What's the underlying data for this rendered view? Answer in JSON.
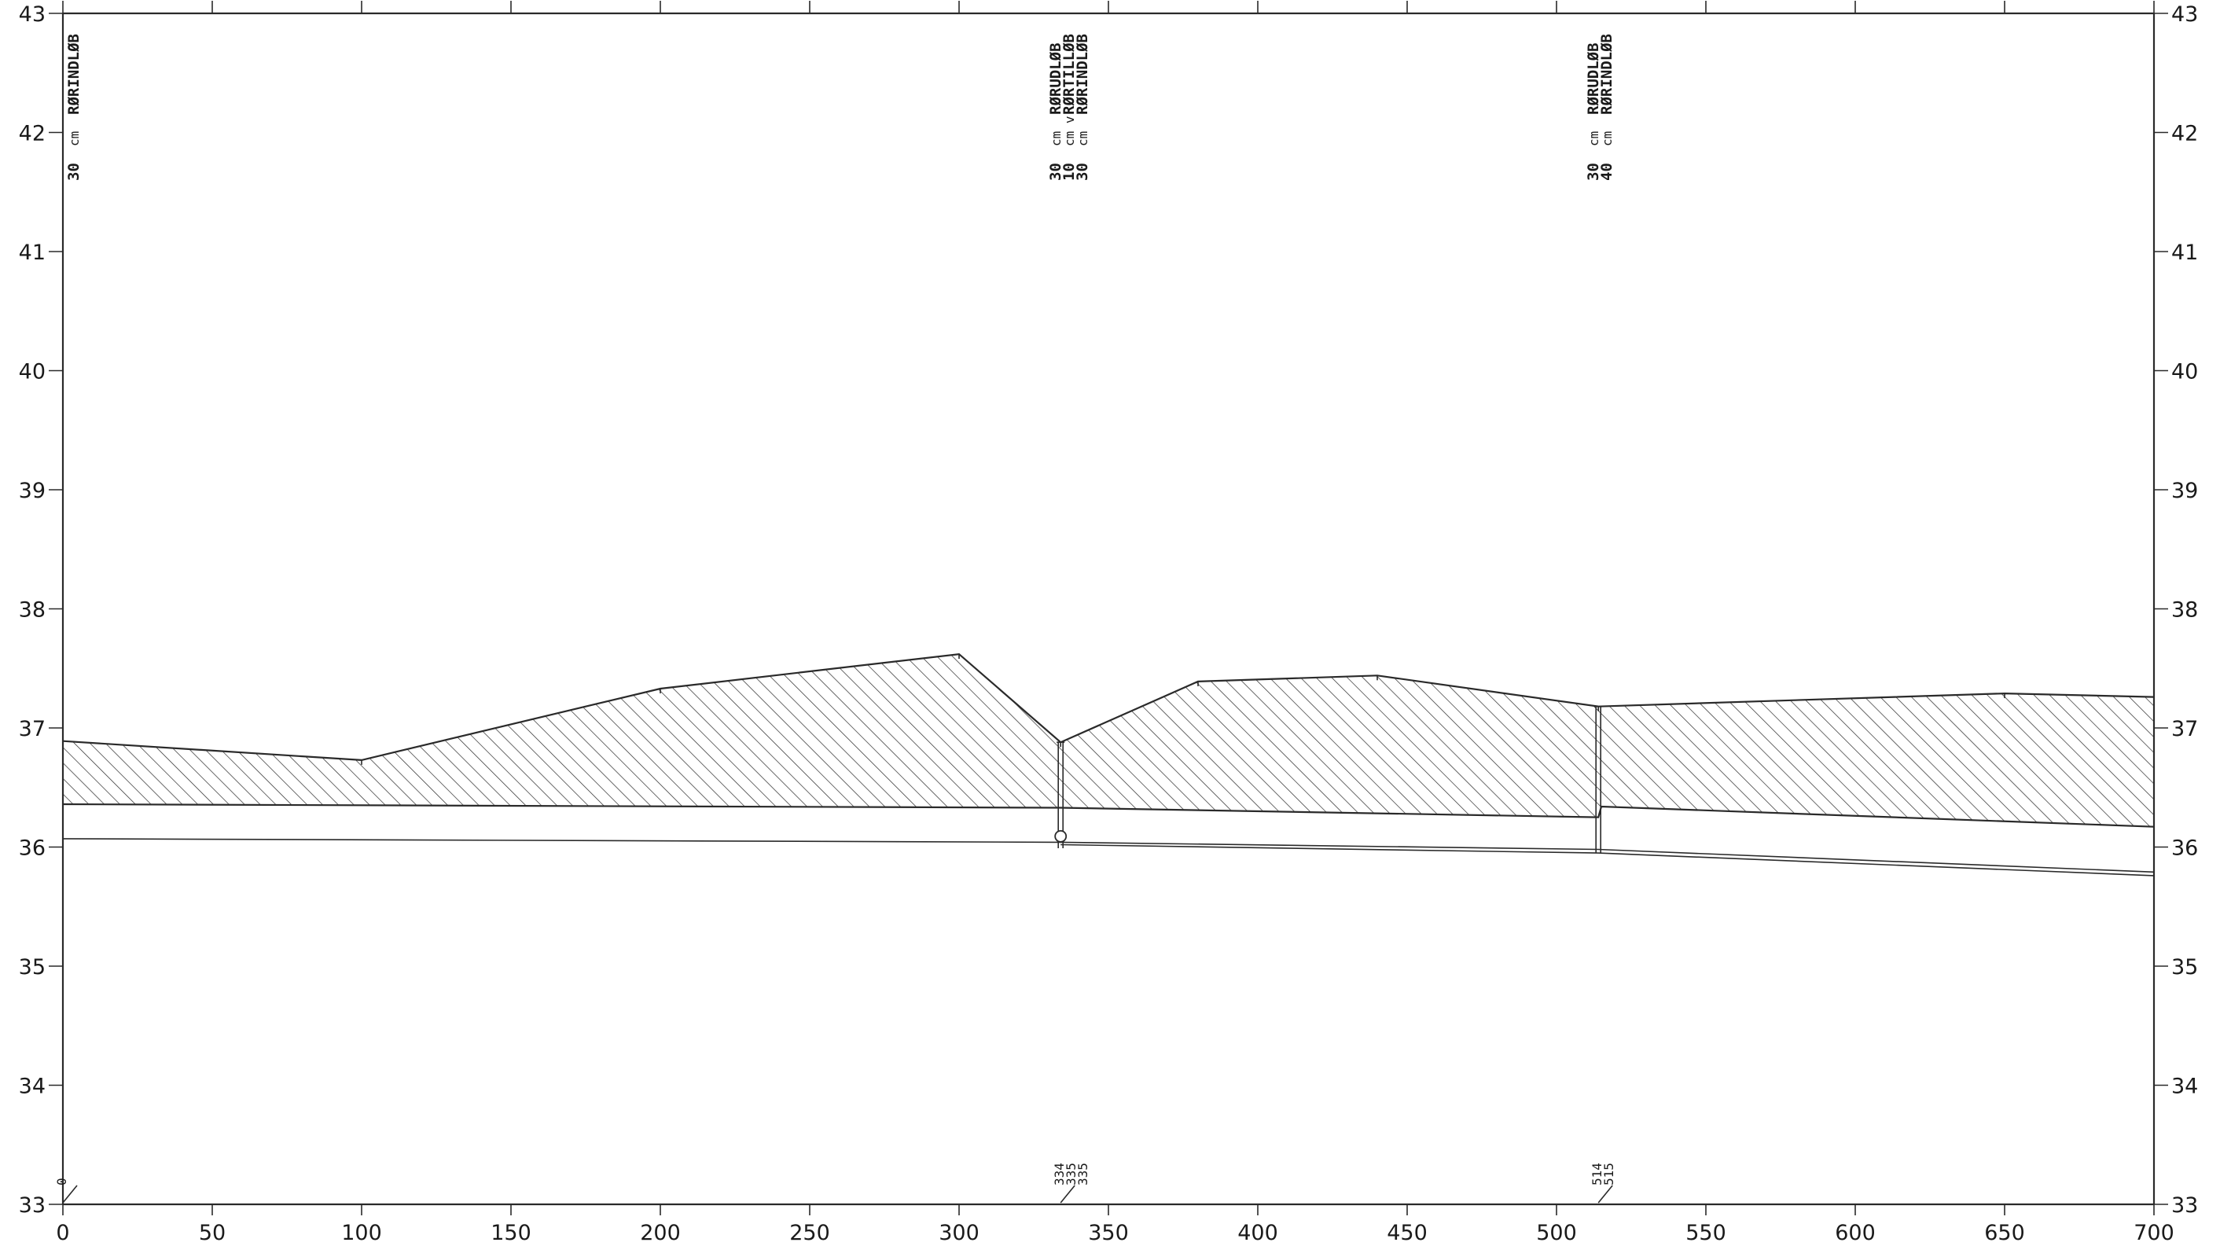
{
  "chart_data": {
    "type": "line",
    "title": "",
    "xlabel": "",
    "ylabel": "",
    "xlim": [
      0,
      700
    ],
    "ylim": [
      33,
      43
    ],
    "x_ticks": [
      "0",
      "50",
      "100",
      "150",
      "200",
      "250",
      "300",
      "350",
      "400",
      "450",
      "500",
      "550",
      "600",
      "650",
      "700"
    ],
    "y_ticks": [
      "33",
      "34",
      "35",
      "36",
      "37",
      "38",
      "39",
      "40",
      "41",
      "42",
      "43"
    ],
    "grid": false,
    "series": [
      {
        "role": "terrain-surface",
        "x": [
          0,
          100,
          200,
          300,
          334,
          380,
          440,
          514,
          650,
          700
        ],
        "y": [
          36.89,
          36.73,
          37.33,
          37.62,
          36.88,
          37.39,
          37.44,
          37.18,
          37.29,
          37.26
        ]
      },
      {
        "role": "cover-bottom",
        "x": [
          0,
          334,
          514,
          515,
          700
        ],
        "y": [
          36.36,
          36.33,
          36.25,
          36.34,
          36.17
        ]
      },
      {
        "role": "pipe-invert-upper",
        "x": [
          0,
          334,
          514,
          700
        ],
        "y": [
          36.07,
          36.04,
          35.98,
          35.79
        ]
      },
      {
        "role": "pipe-invert-lower",
        "x": [
          334,
          514,
          700
        ],
        "y": [
          36.02,
          35.95,
          35.76
        ]
      }
    ],
    "nodes": [
      {
        "x": 334,
        "top": 36.88,
        "bottom": 35.99,
        "circle_y": 36.09
      },
      {
        "x": 514,
        "top": 37.18,
        "bottom": 35.95
      }
    ],
    "annotations": [
      {
        "x": 0,
        "lines": [
          {
            "num": "30",
            "unit": "cm",
            "word": "RØRINDLØB"
          }
        ]
      },
      {
        "x": 334,
        "lines": [
          {
            "num": "30",
            "unit": "cm",
            "word": "RØRUDLØB"
          },
          {
            "num": "10",
            "unit": "cm v",
            "word": "RØRTILLØB"
          },
          {
            "num": "30",
            "unit": "cm",
            "word": "RØRINDLØB"
          }
        ]
      },
      {
        "x": 514,
        "lines": [
          {
            "num": "30",
            "unit": "cm",
            "word": "RØRUDLØB"
          },
          {
            "num": "40",
            "unit": "cm",
            "word": "RØRINDLØB"
          }
        ]
      }
    ],
    "stations": [
      {
        "x": 0,
        "labels": [
          "0"
        ]
      },
      {
        "x": 334,
        "labels": [
          "334",
          "335",
          "335"
        ]
      },
      {
        "x": 514,
        "labels": [
          "514",
          "515"
        ]
      }
    ]
  }
}
